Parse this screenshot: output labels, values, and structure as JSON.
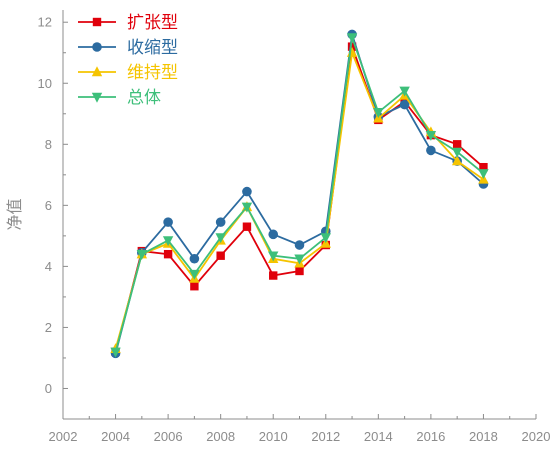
{
  "chart_data": {
    "type": "line",
    "title": "",
    "xlabel": "",
    "ylabel": "净值",
    "xlim": [
      2002,
      2020
    ],
    "ylim": [
      -1,
      12.4
    ],
    "x_ticks": [
      "2002",
      "2004",
      "2006",
      "2008",
      "2010",
      "2012",
      "2014",
      "2016",
      "2018",
      "2020"
    ],
    "y_ticks": [
      "0",
      "2",
      "4",
      "6",
      "8",
      "10",
      "12"
    ],
    "legend_position": "top-left",
    "x": [
      2004,
      2005,
      2006,
      2007,
      2008,
      2009,
      2010,
      2011,
      2012,
      2013,
      2014,
      2015,
      2016,
      2017,
      2018
    ],
    "series": [
      {
        "name": "扩张型",
        "color": "#e0000b",
        "marker": "square",
        "values": [
          1.2,
          4.5,
          4.4,
          3.35,
          4.35,
          5.3,
          3.7,
          3.85,
          4.7,
          11.2,
          8.8,
          9.4,
          8.3,
          8.0,
          7.25
        ]
      },
      {
        "name": "收缩型",
        "color": "#2c6ba0",
        "marker": "circle",
        "values": [
          1.15,
          4.45,
          5.45,
          4.25,
          5.45,
          6.45,
          5.05,
          4.7,
          5.15,
          11.6,
          8.9,
          9.3,
          7.8,
          7.45,
          6.7
        ]
      },
      {
        "name": "维持型",
        "color": "#f5c400",
        "marker": "triangle-up",
        "values": [
          1.3,
          4.4,
          4.75,
          3.6,
          4.85,
          5.95,
          4.25,
          4.1,
          4.75,
          11.0,
          8.85,
          9.6,
          8.4,
          7.45,
          6.85
        ]
      },
      {
        "name": "总体",
        "color": "#3dbf7a",
        "marker": "triangle-down",
        "values": [
          1.2,
          4.4,
          4.85,
          3.75,
          4.95,
          5.95,
          4.35,
          4.25,
          4.95,
          11.5,
          9.05,
          9.75,
          8.3,
          7.75,
          7.05
        ]
      }
    ]
  }
}
